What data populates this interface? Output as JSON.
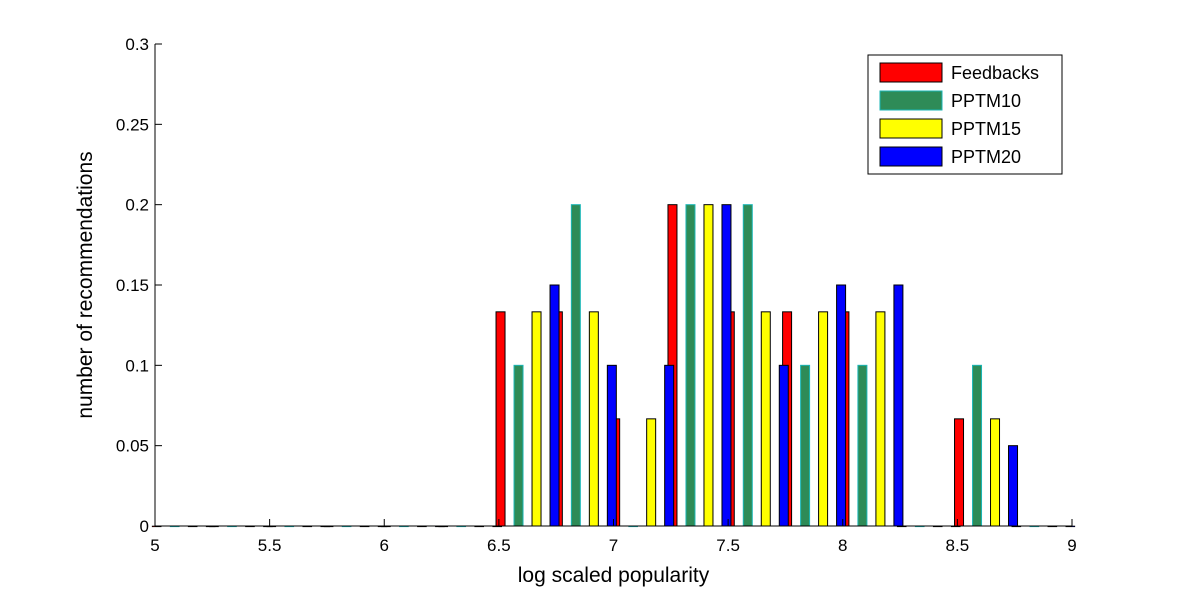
{
  "chart_data": {
    "type": "bar",
    "title": "",
    "xlabel": "log scaled popularity",
    "ylabel": "number of recommendations",
    "xlim": [
      5,
      9
    ],
    "ylim": [
      0,
      0.3
    ],
    "xticks": [
      5,
      5.5,
      6,
      6.5,
      7,
      7.5,
      8,
      8.5,
      9
    ],
    "xtick_labels": [
      "5",
      "5.5",
      "6",
      "6.5",
      "7",
      "7.5",
      "8",
      "8.5",
      "9"
    ],
    "yticks": [
      0,
      0.05,
      0.1,
      0.15,
      0.2,
      0.25,
      0.3
    ],
    "ytick_labels": [
      "0",
      "0.05",
      "0.1",
      "0.15",
      "0.2",
      "0.25",
      "0.3"
    ],
    "x": [
      5.125,
      5.375,
      5.625,
      5.875,
      6.125,
      6.375,
      6.625,
      6.875,
      7.125,
      7.375,
      7.625,
      7.875,
      8.125,
      8.375,
      8.625,
      8.875
    ],
    "series": [
      {
        "name": "Feedbacks",
        "color": "#ff0000",
        "values": [
          0,
          0,
          0,
          0,
          0,
          0,
          0.1333,
          0.1333,
          0.0667,
          0.2,
          0.1333,
          0.1333,
          0.1333,
          0,
          0.0667,
          0
        ]
      },
      {
        "name": "PPTM10",
        "color": "#2e8b57",
        "edge_color": "#1ab6b6",
        "values": [
          0,
          0,
          0,
          0,
          0,
          0,
          0.1,
          0.2,
          0,
          0.2,
          0.2,
          0.1,
          0.1,
          0,
          0.1,
          0
        ]
      },
      {
        "name": "PPTM15",
        "color": "#ffff00",
        "values": [
          0,
          0,
          0,
          0,
          0,
          0,
          0.1333,
          0.1333,
          0.0667,
          0.2,
          0.1333,
          0.1333,
          0.1333,
          0,
          0.0667,
          0
        ]
      },
      {
        "name": "PPTM20",
        "color": "#0000ff",
        "values": [
          0,
          0,
          0,
          0,
          0,
          0,
          0.15,
          0.1,
          0.1,
          0.2,
          0.1,
          0.15,
          0.15,
          0,
          0.05,
          0
        ]
      }
    ],
    "grid": false,
    "legend_position": "top-right"
  }
}
